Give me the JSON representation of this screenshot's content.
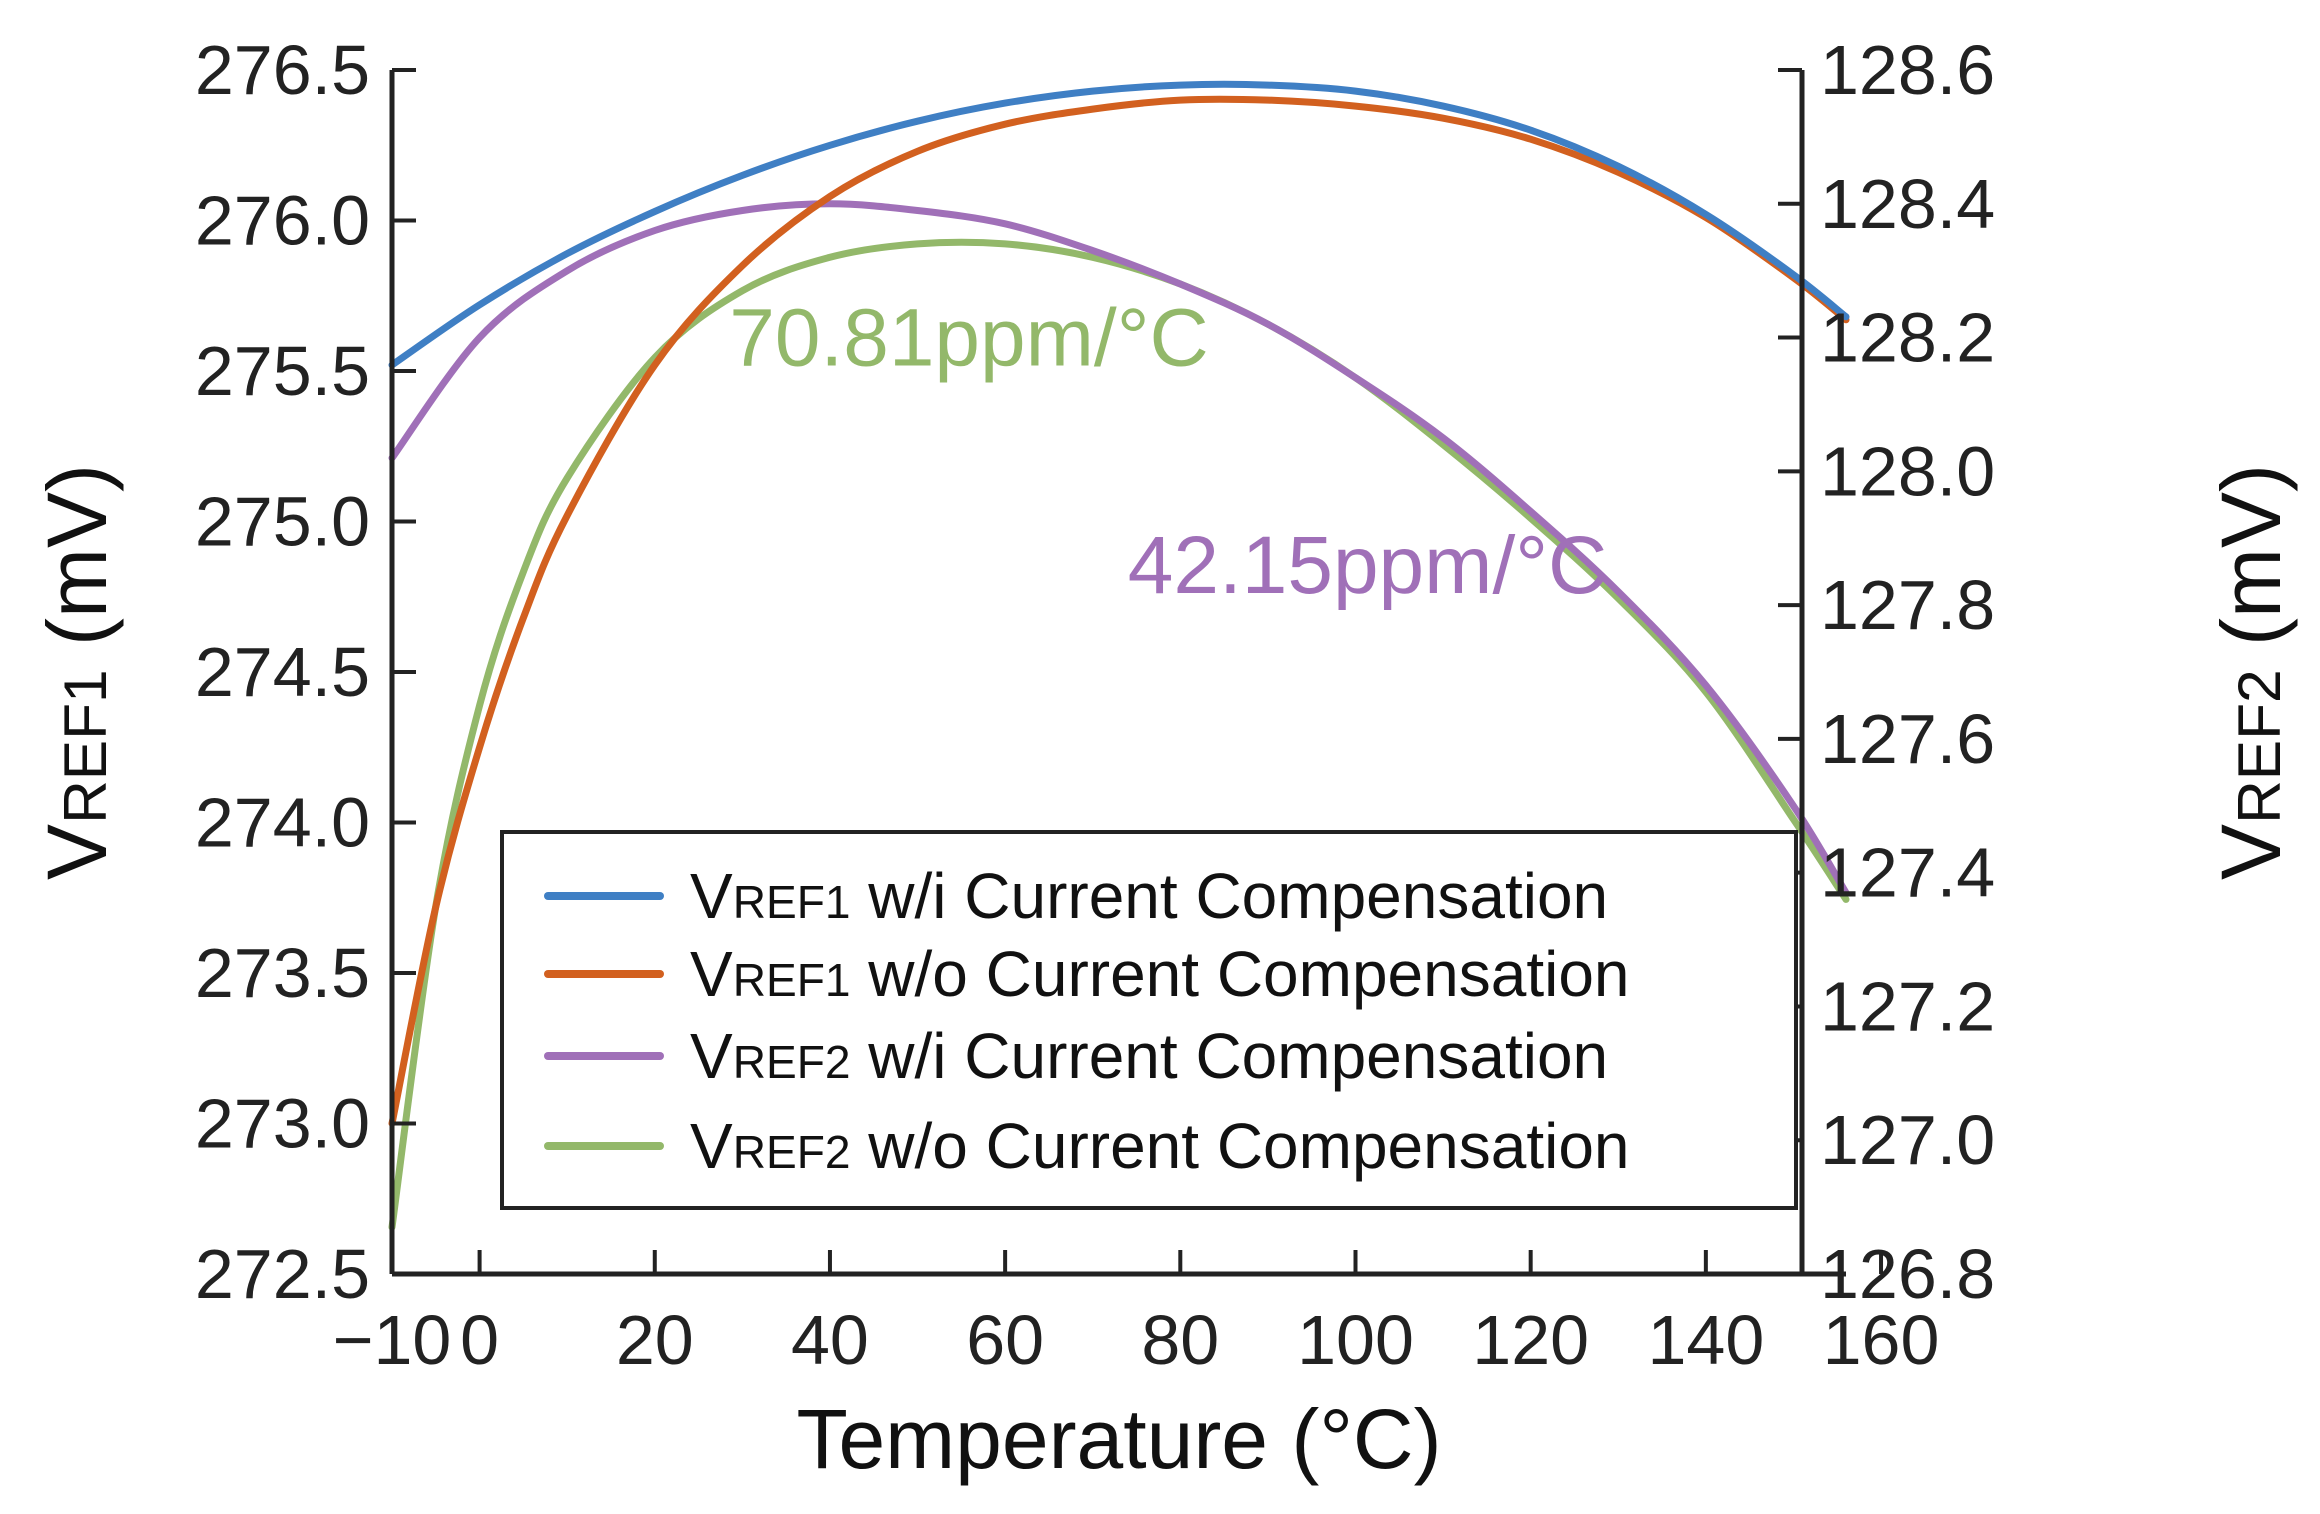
{
  "chart_data": {
    "type": "line",
    "xlabel": "Temperature (°C)",
    "ylabel_left": {
      "main": "V",
      "sub": "REF1",
      "suffix": " (mV)"
    },
    "ylabel_right": {
      "main": "V",
      "sub": "REF2",
      "suffix": " (mV)"
    },
    "xlim": [
      -10,
      156
    ],
    "ylim_left": [
      272.5,
      276.5
    ],
    "ylim_right": [
      126.8,
      128.6
    ],
    "x_ticks": [
      {
        "value": -10,
        "label": "−10"
      },
      {
        "value": 0,
        "label": "0"
      },
      {
        "value": 20,
        "label": "20"
      },
      {
        "value": 40,
        "label": "40"
      },
      {
        "value": 60,
        "label": "60"
      },
      {
        "value": 80,
        "label": "80"
      },
      {
        "value": 100,
        "label": "100"
      },
      {
        "value": 120,
        "label": "120"
      },
      {
        "value": 140,
        "label": "140"
      },
      {
        "value": 160,
        "label": "160"
      }
    ],
    "y_ticks_left": [
      {
        "value": 276.5,
        "label": "276.5"
      },
      {
        "value": 276.0,
        "label": "276.0"
      },
      {
        "value": 275.5,
        "label": "275.5"
      },
      {
        "value": 275.0,
        "label": "275.0"
      },
      {
        "value": 274.5,
        "label": "274.5"
      },
      {
        "value": 274.0,
        "label": "274.0"
      },
      {
        "value": 273.5,
        "label": "273.5"
      },
      {
        "value": 273.0,
        "label": "273.0"
      },
      {
        "value": 272.5,
        "label": "272.5"
      }
    ],
    "y_ticks_right": [
      {
        "value": 128.6,
        "label": "128.6"
      },
      {
        "value": 128.4,
        "label": "128.4"
      },
      {
        "value": 128.2,
        "label": "128.2"
      },
      {
        "value": 128.0,
        "label": "128.0"
      },
      {
        "value": 127.8,
        "label": "127.8"
      },
      {
        "value": 127.6,
        "label": "127.6"
      },
      {
        "value": 127.4,
        "label": "127.4"
      },
      {
        "value": 127.2,
        "label": "127.2"
      },
      {
        "value": 127.0,
        "label": "127.0"
      },
      {
        "value": 126.8,
        "label": "126.8"
      }
    ],
    "series": [
      {
        "name": "VREF1 w/i Current Compensation",
        "legend": {
          "main": "V",
          "sub": "REF1",
          "rest": " w/i Current Compensation"
        },
        "axis": "left",
        "color": "#3f7fc4",
        "x": [
          -10,
          0,
          10,
          20,
          30,
          40,
          50,
          60,
          70,
          80,
          90,
          100,
          110,
          120,
          130,
          140,
          150,
          156
        ],
        "y": [
          275.52,
          275.72,
          275.89,
          276.03,
          276.15,
          276.25,
          276.33,
          276.39,
          276.43,
          276.45,
          276.45,
          276.43,
          276.38,
          276.3,
          276.18,
          276.02,
          275.82,
          275.68
        ]
      },
      {
        "name": "VREF1 w/o Current Compensation",
        "legend": {
          "main": "V",
          "sub": "REF1",
          "rest": " w/o Current Compensation"
        },
        "axis": "left",
        "color": "#d2601f",
        "x": [
          -10,
          -5,
          0,
          5,
          10,
          20,
          30,
          40,
          50,
          60,
          70,
          80,
          90,
          100,
          110,
          120,
          130,
          140,
          150,
          156
        ],
        "y": [
          273.0,
          273.72,
          274.25,
          274.68,
          275.02,
          275.52,
          275.85,
          276.08,
          276.23,
          276.32,
          276.37,
          276.4,
          276.4,
          276.38,
          276.34,
          276.27,
          276.16,
          276.01,
          275.81,
          275.67
        ]
      },
      {
        "name": "VREF2 w/i Current Compensation",
        "legend": {
          "main": "V",
          "sub": "REF2",
          "rest": " w/i Current Compensation"
        },
        "axis": "right",
        "color": "#a070b8",
        "x": [
          -10,
          0,
          10,
          20,
          30,
          40,
          50,
          60,
          70,
          80,
          90,
          100,
          110,
          120,
          130,
          140,
          150,
          156
        ],
        "y": [
          128.02,
          128.2,
          128.3,
          128.36,
          128.39,
          128.4,
          128.39,
          128.37,
          128.33,
          128.28,
          128.22,
          128.14,
          128.05,
          127.94,
          127.82,
          127.68,
          127.5,
          127.37
        ]
      },
      {
        "name": "VREF2 w/o Current Compensation",
        "legend": {
          "main": "V",
          "sub": "REF2",
          "rest": " w/o Current Compensation"
        },
        "axis": "right",
        "color": "#93b86a",
        "x": [
          -10,
          -5,
          0,
          5,
          10,
          20,
          30,
          40,
          50,
          60,
          70,
          80,
          90,
          100,
          110,
          120,
          130,
          140,
          150,
          156
        ],
        "y": [
          126.87,
          127.35,
          127.65,
          127.85,
          127.99,
          128.17,
          128.27,
          128.32,
          128.34,
          128.34,
          128.32,
          128.28,
          128.22,
          128.14,
          128.04,
          127.93,
          127.81,
          127.67,
          127.48,
          127.36
        ]
      }
    ],
    "annotations": [
      {
        "text": "70.81ppm/°C",
        "color": "#93b86a",
        "x": 28.5,
        "axis": "right",
        "y": 128.2
      },
      {
        "text": "42.15ppm/°C",
        "color": "#a070b8",
        "x": 74,
        "axis": "right",
        "y": 127.86
      }
    ],
    "legend_position": "bottom-right inside plot"
  }
}
